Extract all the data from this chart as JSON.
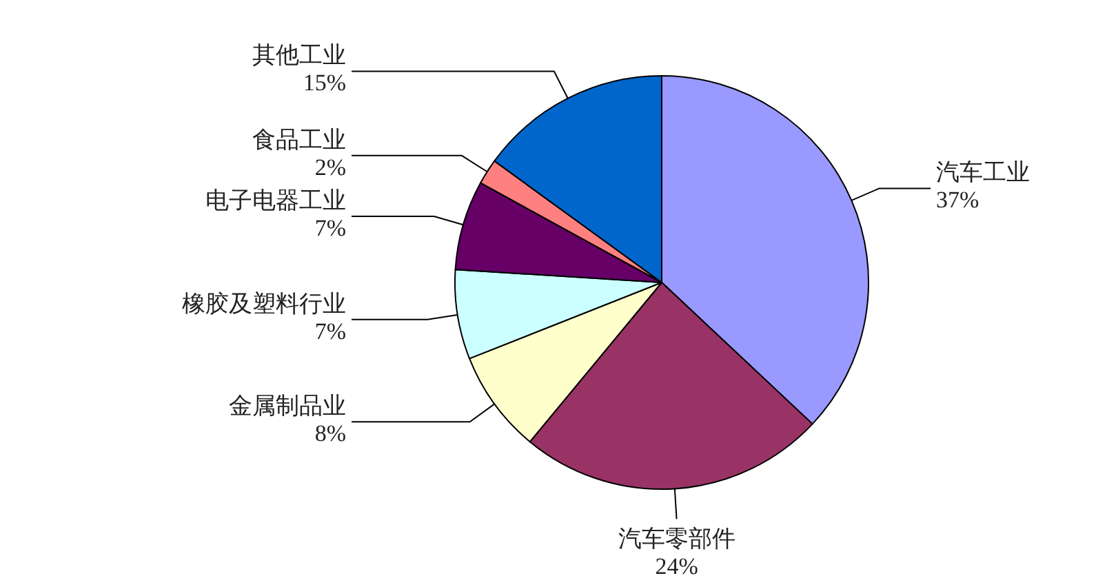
{
  "chart_data": {
    "type": "pie",
    "categories": [
      "汽车工业",
      "汽车零部件",
      "金属制品业",
      "橡胶及塑料行业",
      "电子电器工业",
      "食品工业",
      "其他工业"
    ],
    "values": [
      37,
      24,
      8,
      7,
      7,
      2,
      15
    ],
    "value_labels": [
      "37%",
      "24%",
      "8%",
      "7%",
      "7%",
      "2%",
      "15%"
    ],
    "colors": [
      "#9999ff",
      "#993366",
      "#ffffcc",
      "#ccffff",
      "#660066",
      "#ff8080",
      "#0066cc"
    ]
  }
}
